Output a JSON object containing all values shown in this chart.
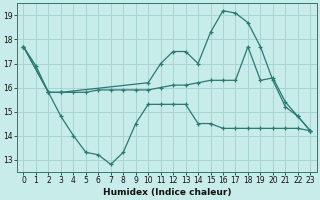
{
  "xlabel": "Humidex (Indice chaleur)",
  "bg_color": "#c8ecea",
  "grid_color": "#aad4d4",
  "line_color": "#2a7a72",
  "xlim": [
    -0.5,
    23.5
  ],
  "ylim": [
    12.5,
    19.5
  ],
  "yticks": [
    13,
    14,
    15,
    16,
    17,
    18,
    19
  ],
  "xticks": [
    0,
    1,
    2,
    3,
    4,
    5,
    6,
    7,
    8,
    9,
    10,
    11,
    12,
    13,
    14,
    15,
    16,
    17,
    18,
    19,
    20,
    21,
    22,
    23
  ],
  "series": [
    {
      "x": [
        0,
        1,
        2,
        3,
        10,
        11,
        12,
        13,
        14,
        15,
        16,
        17,
        18,
        19,
        20,
        21,
        22,
        23
      ],
      "y": [
        17.7,
        16.9,
        15.8,
        15.8,
        16.2,
        17.0,
        17.5,
        17.5,
        17.0,
        18.3,
        19.2,
        19.1,
        18.7,
        17.7,
        16.3,
        15.2,
        14.8,
        14.2
      ]
    },
    {
      "x": [
        0,
        2,
        3,
        4,
        5,
        6,
        7,
        8,
        9,
        10,
        11,
        12,
        13,
        14,
        15,
        16,
        17,
        18,
        19,
        20,
        21,
        22,
        23
      ],
      "y": [
        17.7,
        15.8,
        14.8,
        14.0,
        13.3,
        13.2,
        12.8,
        13.3,
        14.5,
        15.3,
        15.3,
        15.3,
        15.3,
        14.5,
        14.5,
        14.3,
        14.3,
        14.3,
        14.3,
        14.3,
        14.3,
        14.3,
        14.2
      ]
    },
    {
      "x": [
        0,
        2,
        3,
        4,
        5,
        6,
        7,
        8,
        9,
        10,
        11,
        12,
        13,
        14,
        15,
        16,
        17,
        18,
        19,
        20,
        21,
        22,
        23
      ],
      "y": [
        17.7,
        15.8,
        15.8,
        15.8,
        15.8,
        15.9,
        15.9,
        15.9,
        15.9,
        15.9,
        16.0,
        16.1,
        16.1,
        16.2,
        16.3,
        16.3,
        16.3,
        17.7,
        16.3,
        16.4,
        15.4,
        14.8,
        14.2
      ]
    }
  ]
}
